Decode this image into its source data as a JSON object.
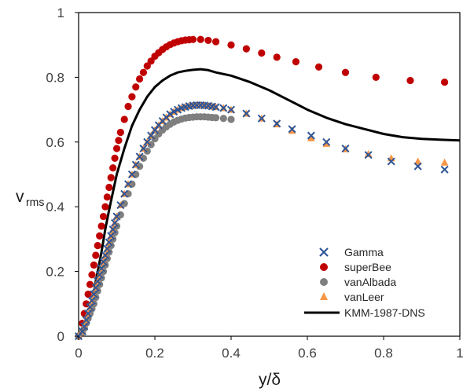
{
  "chart_data": {
    "type": "scatter",
    "xlabel": "y/δ",
    "ylabel_main": "v",
    "ylabel_sub": "rms",
    "xlim": [
      0,
      1
    ],
    "ylim": [
      0,
      1
    ],
    "x_ticks": [
      "0",
      "0.2",
      "0.4",
      "0.6",
      "0.8",
      "1"
    ],
    "y_ticks": [
      "0",
      "0.2",
      "0.4",
      "0.6",
      "0.8",
      "1"
    ],
    "grid": false,
    "legend_position": "lower-right",
    "series": [
      {
        "name": "Gamma",
        "marker": "x",
        "color": "#2E5597",
        "x": [
          0.0,
          0.01,
          0.015,
          0.02,
          0.025,
          0.03,
          0.035,
          0.04,
          0.045,
          0.05,
          0.055,
          0.06,
          0.065,
          0.07,
          0.075,
          0.08,
          0.085,
          0.09,
          0.095,
          0.1,
          0.11,
          0.12,
          0.13,
          0.14,
          0.15,
          0.16,
          0.17,
          0.18,
          0.19,
          0.2,
          0.21,
          0.22,
          0.23,
          0.24,
          0.25,
          0.26,
          0.27,
          0.28,
          0.29,
          0.3,
          0.31,
          0.32,
          0.33,
          0.34,
          0.35,
          0.36,
          0.38,
          0.4,
          0.44,
          0.48,
          0.52,
          0.56,
          0.61,
          0.65,
          0.7,
          0.76,
          0.82,
          0.89,
          0.96
        ],
        "y": [
          0.0,
          0.015,
          0.03,
          0.05,
          0.07,
          0.09,
          0.11,
          0.13,
          0.15,
          0.17,
          0.19,
          0.21,
          0.23,
          0.25,
          0.27,
          0.29,
          0.31,
          0.33,
          0.35,
          0.37,
          0.405,
          0.44,
          0.47,
          0.5,
          0.53,
          0.555,
          0.58,
          0.6,
          0.62,
          0.637,
          0.652,
          0.665,
          0.676,
          0.686,
          0.694,
          0.7,
          0.705,
          0.708,
          0.711,
          0.713,
          0.714,
          0.714,
          0.713,
          0.712,
          0.71,
          0.708,
          0.705,
          0.7,
          0.688,
          0.673,
          0.657,
          0.64,
          0.62,
          0.6,
          0.58,
          0.56,
          0.54,
          0.525,
          0.515
        ]
      },
      {
        "name": "superBee",
        "marker": "circle",
        "color": "#C00000",
        "x": [
          0.0,
          0.01,
          0.015,
          0.02,
          0.025,
          0.03,
          0.035,
          0.04,
          0.045,
          0.05,
          0.055,
          0.06,
          0.065,
          0.07,
          0.075,
          0.08,
          0.085,
          0.09,
          0.095,
          0.1,
          0.105,
          0.11,
          0.12,
          0.13,
          0.14,
          0.15,
          0.16,
          0.17,
          0.18,
          0.19,
          0.2,
          0.21,
          0.22,
          0.23,
          0.24,
          0.25,
          0.26,
          0.27,
          0.28,
          0.29,
          0.3,
          0.32,
          0.34,
          0.36,
          0.4,
          0.44,
          0.48,
          0.52,
          0.57,
          0.63,
          0.7,
          0.78,
          0.87,
          0.96
        ],
        "y": [
          0.0,
          0.04,
          0.07,
          0.1,
          0.13,
          0.16,
          0.19,
          0.22,
          0.25,
          0.28,
          0.31,
          0.34,
          0.37,
          0.4,
          0.43,
          0.46,
          0.49,
          0.52,
          0.55,
          0.58,
          0.605,
          0.63,
          0.67,
          0.71,
          0.74,
          0.77,
          0.795,
          0.815,
          0.835,
          0.85,
          0.865,
          0.876,
          0.886,
          0.894,
          0.901,
          0.906,
          0.91,
          0.913,
          0.915,
          0.916,
          0.917,
          0.917,
          0.914,
          0.91,
          0.9,
          0.888,
          0.875,
          0.862,
          0.848,
          0.832,
          0.815,
          0.8,
          0.79,
          0.785
        ]
      },
      {
        "name": "vanAlbada",
        "marker": "circle",
        "color": "#7F7F7F",
        "x": [
          0.0,
          0.01,
          0.015,
          0.02,
          0.025,
          0.03,
          0.035,
          0.04,
          0.045,
          0.05,
          0.055,
          0.06,
          0.065,
          0.07,
          0.075,
          0.08,
          0.085,
          0.09,
          0.095,
          0.1,
          0.11,
          0.12,
          0.13,
          0.14,
          0.15,
          0.16,
          0.17,
          0.18,
          0.19,
          0.2,
          0.21,
          0.22,
          0.23,
          0.24,
          0.25,
          0.26,
          0.27,
          0.28,
          0.29,
          0.3,
          0.31,
          0.32,
          0.33,
          0.34,
          0.35,
          0.36,
          0.38,
          0.4
        ],
        "y": [
          0.0,
          0.012,
          0.025,
          0.04,
          0.055,
          0.07,
          0.085,
          0.1,
          0.12,
          0.14,
          0.16,
          0.18,
          0.2,
          0.22,
          0.24,
          0.26,
          0.28,
          0.3,
          0.32,
          0.34,
          0.375,
          0.41,
          0.44,
          0.47,
          0.5,
          0.525,
          0.55,
          0.572,
          0.592,
          0.61,
          0.625,
          0.637,
          0.647,
          0.655,
          0.662,
          0.667,
          0.671,
          0.674,
          0.676,
          0.677,
          0.678,
          0.678,
          0.678,
          0.677,
          0.676,
          0.675,
          0.673,
          0.67
        ]
      },
      {
        "name": "vanLeer",
        "marker": "triangle",
        "color": "#F79646",
        "x": [
          0.0,
          0.01,
          0.015,
          0.02,
          0.025,
          0.03,
          0.035,
          0.04,
          0.045,
          0.05,
          0.055,
          0.06,
          0.065,
          0.07,
          0.075,
          0.08,
          0.085,
          0.09,
          0.095,
          0.1,
          0.11,
          0.12,
          0.13,
          0.14,
          0.15,
          0.16,
          0.17,
          0.18,
          0.19,
          0.2,
          0.21,
          0.22,
          0.23,
          0.24,
          0.25,
          0.26,
          0.27,
          0.28,
          0.29,
          0.3,
          0.31,
          0.32,
          0.33,
          0.34,
          0.35,
          0.36,
          0.38,
          0.4,
          0.44,
          0.48,
          0.52,
          0.56,
          0.61,
          0.65,
          0.7,
          0.76,
          0.82,
          0.89,
          0.96
        ],
        "y": [
          0.0,
          0.015,
          0.03,
          0.05,
          0.07,
          0.09,
          0.11,
          0.13,
          0.15,
          0.17,
          0.19,
          0.21,
          0.23,
          0.25,
          0.27,
          0.29,
          0.31,
          0.33,
          0.35,
          0.37,
          0.405,
          0.44,
          0.47,
          0.5,
          0.53,
          0.555,
          0.58,
          0.6,
          0.62,
          0.637,
          0.652,
          0.665,
          0.676,
          0.686,
          0.694,
          0.7,
          0.705,
          0.708,
          0.711,
          0.713,
          0.714,
          0.714,
          0.713,
          0.712,
          0.71,
          0.708,
          0.705,
          0.7,
          0.688,
          0.673,
          0.655,
          0.635,
          0.612,
          0.595,
          0.578,
          0.563,
          0.55,
          0.54,
          0.537
        ]
      },
      {
        "name": "KMM-1987-DNS",
        "marker": "line",
        "color": "#000000",
        "x": [
          0.0,
          0.01,
          0.02,
          0.03,
          0.04,
          0.05,
          0.06,
          0.07,
          0.08,
          0.1,
          0.12,
          0.14,
          0.16,
          0.18,
          0.2,
          0.22,
          0.24,
          0.26,
          0.28,
          0.3,
          0.32,
          0.34,
          0.36,
          0.4,
          0.45,
          0.5,
          0.55,
          0.6,
          0.65,
          0.7,
          0.75,
          0.8,
          0.85,
          0.9,
          0.95,
          1.0
        ],
        "y": [
          0.0,
          0.02,
          0.05,
          0.09,
          0.14,
          0.2,
          0.26,
          0.33,
          0.39,
          0.5,
          0.58,
          0.65,
          0.7,
          0.74,
          0.77,
          0.79,
          0.805,
          0.815,
          0.82,
          0.823,
          0.825,
          0.822,
          0.815,
          0.805,
          0.785,
          0.76,
          0.73,
          0.7,
          0.675,
          0.655,
          0.64,
          0.625,
          0.615,
          0.61,
          0.607,
          0.605
        ]
      }
    ]
  }
}
